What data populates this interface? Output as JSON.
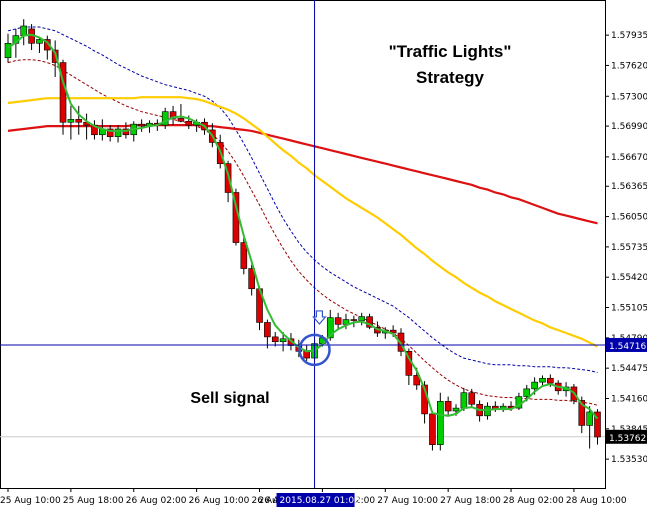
{
  "chart_data": {
    "type": "candlestick",
    "instrument": "GBPUSD",
    "annotations": {
      "title_line1": "\"Traffic Lights\"",
      "title_line2": "Strategy",
      "signal": "Sell signal"
    },
    "ylim": [
      1.5323,
      1.583
    ],
    "y_ticks": [
      "1.57935",
      "1.57620",
      "1.57300",
      "1.56990",
      "1.56670",
      "1.56365",
      "1.56050",
      "1.55735",
      "1.55420",
      "1.55105",
      "1.54790",
      "1.54475",
      "1.54160",
      "1.53845",
      "1.53530"
    ],
    "x_ticks": [
      "25 Aug 10:00",
      "25 Aug 18:00",
      "26 Aug 02:00",
      "26 Aug 10:00",
      "26 Aug 18:00",
      "27 Aug 02:00",
      "27 Aug 10:00",
      "27 Aug 18:00",
      "28 Aug 02:00",
      "28 Aug 10:00"
    ],
    "x_tick_bars": [
      0,
      8,
      16,
      24,
      32,
      40,
      48,
      56,
      64,
      72
    ],
    "x_partial_label": "26 A",
    "crosshair": {
      "time_label": "2015.08.27 01:00",
      "bar": 39,
      "price_label": "1.54716",
      "price": 1.54716
    },
    "last_price_label": "1.53762",
    "last_price": 1.53762,
    "signal_bar": 39,
    "arrow_bar": 40,
    "colors": {
      "bull": "#00cc00",
      "bear": "#dd0000",
      "ma_fast": "#33bb33",
      "ma_slow": "#ffcc00",
      "ma_long": "#dd1111",
      "env_upper": "#0000aa",
      "env_lower": "#990000",
      "crosshair": "#0000aa",
      "circle": "#3355cc",
      "arrow": "#3355cc",
      "price_box": "#0000aa",
      "last_box": "#000000"
    },
    "candles": [
      {
        "o": 1.577,
        "h": 1.5795,
        "l": 1.5765,
        "c": 1.5785
      },
      {
        "o": 1.5785,
        "h": 1.58,
        "l": 1.577,
        "c": 1.5793
      },
      {
        "o": 1.5793,
        "h": 1.581,
        "l": 1.5783,
        "c": 1.5803
      },
      {
        "o": 1.58,
        "h": 1.5805,
        "l": 1.5778,
        "c": 1.5785
      },
      {
        "o": 1.5785,
        "h": 1.5792,
        "l": 1.5775,
        "c": 1.5789
      },
      {
        "o": 1.5789,
        "h": 1.5793,
        "l": 1.5768,
        "c": 1.5778
      },
      {
        "o": 1.5778,
        "h": 1.5788,
        "l": 1.575,
        "c": 1.5765
      },
      {
        "o": 1.5765,
        "h": 1.5768,
        "l": 1.569,
        "c": 1.5703
      },
      {
        "o": 1.5703,
        "h": 1.572,
        "l": 1.5685,
        "c": 1.5706
      },
      {
        "o": 1.5706,
        "h": 1.572,
        "l": 1.569,
        "c": 1.5703
      },
      {
        "o": 1.5703,
        "h": 1.5712,
        "l": 1.5685,
        "c": 1.57
      },
      {
        "o": 1.57,
        "h": 1.5705,
        "l": 1.5685,
        "c": 1.569
      },
      {
        "o": 1.569,
        "h": 1.5706,
        "l": 1.5684,
        "c": 1.5696
      },
      {
        "o": 1.5696,
        "h": 1.57,
        "l": 1.5683,
        "c": 1.5688
      },
      {
        "o": 1.5688,
        "h": 1.57,
        "l": 1.5682,
        "c": 1.5696
      },
      {
        "o": 1.5696,
        "h": 1.5703,
        "l": 1.5686,
        "c": 1.569
      },
      {
        "o": 1.569,
        "h": 1.5704,
        "l": 1.5683,
        "c": 1.5701
      },
      {
        "o": 1.5701,
        "h": 1.5706,
        "l": 1.5693,
        "c": 1.5699
      },
      {
        "o": 1.5699,
        "h": 1.5705,
        "l": 1.5692,
        "c": 1.5702
      },
      {
        "o": 1.5702,
        "h": 1.5706,
        "l": 1.5694,
        "c": 1.57
      },
      {
        "o": 1.57,
        "h": 1.5718,
        "l": 1.5696,
        "c": 1.5714
      },
      {
        "o": 1.5714,
        "h": 1.572,
        "l": 1.57,
        "c": 1.5707
      },
      {
        "o": 1.5707,
        "h": 1.5722,
        "l": 1.5703,
        "c": 1.5704
      },
      {
        "o": 1.5704,
        "h": 1.571,
        "l": 1.5696,
        "c": 1.57
      },
      {
        "o": 1.57,
        "h": 1.5706,
        "l": 1.5693,
        "c": 1.5703
      },
      {
        "o": 1.5703,
        "h": 1.5707,
        "l": 1.569,
        "c": 1.5695
      },
      {
        "o": 1.5695,
        "h": 1.5702,
        "l": 1.5677,
        "c": 1.5682
      },
      {
        "o": 1.5682,
        "h": 1.569,
        "l": 1.5655,
        "c": 1.566
      },
      {
        "o": 1.566,
        "h": 1.5663,
        "l": 1.562,
        "c": 1.563
      },
      {
        "o": 1.563,
        "h": 1.5634,
        "l": 1.5575,
        "c": 1.5578
      },
      {
        "o": 1.5578,
        "h": 1.5583,
        "l": 1.5545,
        "c": 1.5551
      },
      {
        "o": 1.5551,
        "h": 1.5555,
        "l": 1.5523,
        "c": 1.553
      },
      {
        "o": 1.553,
        "h": 1.5533,
        "l": 1.5487,
        "c": 1.5495
      },
      {
        "o": 1.5495,
        "h": 1.5498,
        "l": 1.5468,
        "c": 1.548
      },
      {
        "o": 1.548,
        "h": 1.5485,
        "l": 1.547,
        "c": 1.5475
      },
      {
        "o": 1.5475,
        "h": 1.5485,
        "l": 1.5465,
        "c": 1.5478
      },
      {
        "o": 1.5478,
        "h": 1.5484,
        "l": 1.5466,
        "c": 1.5471
      },
      {
        "o": 1.5471,
        "h": 1.5477,
        "l": 1.5459,
        "c": 1.5465
      },
      {
        "o": 1.5465,
        "h": 1.5472,
        "l": 1.5455,
        "c": 1.5458
      },
      {
        "o": 1.5458,
        "h": 1.5477,
        "l": 1.5456,
        "c": 1.5473
      },
      {
        "o": 1.5473,
        "h": 1.5482,
        "l": 1.547,
        "c": 1.5479
      },
      {
        "o": 1.5479,
        "h": 1.5508,
        "l": 1.5476,
        "c": 1.55
      },
      {
        "o": 1.55,
        "h": 1.5505,
        "l": 1.5488,
        "c": 1.5493
      },
      {
        "o": 1.5493,
        "h": 1.5504,
        "l": 1.5488,
        "c": 1.5498
      },
      {
        "o": 1.5498,
        "h": 1.5502,
        "l": 1.549,
        "c": 1.5497
      },
      {
        "o": 1.5497,
        "h": 1.5505,
        "l": 1.5492,
        "c": 1.5501
      },
      {
        "o": 1.5501,
        "h": 1.5504,
        "l": 1.5488,
        "c": 1.549
      },
      {
        "o": 1.549,
        "h": 1.5496,
        "l": 1.548,
        "c": 1.5484
      },
      {
        "o": 1.5484,
        "h": 1.549,
        "l": 1.5478,
        "c": 1.5487
      },
      {
        "o": 1.5487,
        "h": 1.5492,
        "l": 1.548,
        "c": 1.5484
      },
      {
        "o": 1.5484,
        "h": 1.5489,
        "l": 1.546,
        "c": 1.5465
      },
      {
        "o": 1.5465,
        "h": 1.5468,
        "l": 1.543,
        "c": 1.544
      },
      {
        "o": 1.544,
        "h": 1.5448,
        "l": 1.5425,
        "c": 1.543
      },
      {
        "o": 1.543,
        "h": 1.5434,
        "l": 1.539,
        "c": 1.54
      },
      {
        "o": 1.54,
        "h": 1.5403,
        "l": 1.5362,
        "c": 1.5368
      },
      {
        "o": 1.5368,
        "h": 1.5422,
        "l": 1.5362,
        "c": 1.5413
      },
      {
        "o": 1.5413,
        "h": 1.5418,
        "l": 1.5398,
        "c": 1.5403
      },
      {
        "o": 1.5403,
        "h": 1.541,
        "l": 1.5398,
        "c": 1.5406
      },
      {
        "o": 1.5406,
        "h": 1.5427,
        "l": 1.5403,
        "c": 1.5422
      },
      {
        "o": 1.5422,
        "h": 1.5426,
        "l": 1.5406,
        "c": 1.541
      },
      {
        "o": 1.541,
        "h": 1.5414,
        "l": 1.5392,
        "c": 1.5398
      },
      {
        "o": 1.5398,
        "h": 1.5412,
        "l": 1.5394,
        "c": 1.5408
      },
      {
        "o": 1.5408,
        "h": 1.5413,
        "l": 1.5402,
        "c": 1.5405
      },
      {
        "o": 1.5405,
        "h": 1.5411,
        "l": 1.5402,
        "c": 1.5408
      },
      {
        "o": 1.5408,
        "h": 1.5413,
        "l": 1.5403,
        "c": 1.5406
      },
      {
        "o": 1.5406,
        "h": 1.5422,
        "l": 1.5404,
        "c": 1.5418
      },
      {
        "o": 1.5418,
        "h": 1.543,
        "l": 1.5413,
        "c": 1.5426
      },
      {
        "o": 1.5426,
        "h": 1.5438,
        "l": 1.542,
        "c": 1.5433
      },
      {
        "o": 1.5433,
        "h": 1.544,
        "l": 1.5428,
        "c": 1.5437
      },
      {
        "o": 1.5437,
        "h": 1.5441,
        "l": 1.5428,
        "c": 1.5432
      },
      {
        "o": 1.5432,
        "h": 1.5435,
        "l": 1.542,
        "c": 1.5424
      },
      {
        "o": 1.5424,
        "h": 1.5433,
        "l": 1.5418,
        "c": 1.5428
      },
      {
        "o": 1.5428,
        "h": 1.5431,
        "l": 1.541,
        "c": 1.5414
      },
      {
        "o": 1.5414,
        "h": 1.5418,
        "l": 1.538,
        "c": 1.5388
      },
      {
        "o": 1.5388,
        "h": 1.5408,
        "l": 1.5364,
        "c": 1.5402
      },
      {
        "o": 1.5402,
        "h": 1.5405,
        "l": 1.5368,
        "c": 1.5376
      }
    ],
    "ma_fast": [
      1.578,
      1.5786,
      1.5793,
      1.5794,
      1.5791,
      1.5786,
      1.5775,
      1.5745,
      1.5722,
      1.5711,
      1.5704,
      1.5699,
      1.5696,
      1.5694,
      1.5694,
      1.5694,
      1.5696,
      1.5697,
      1.5699,
      1.57,
      1.5704,
      1.5708,
      1.5709,
      1.5707,
      1.5703,
      1.5699,
      1.5689,
      1.5673,
      1.5649,
      1.5616,
      1.5585,
      1.5558,
      1.553,
      1.5508,
      1.5492,
      1.5483,
      1.5476,
      1.5469,
      1.5465,
      1.5466,
      1.5472,
      1.5482,
      1.5488,
      1.5492,
      1.5495,
      1.5496,
      1.5493,
      1.5488,
      1.5486,
      1.5483,
      1.5473,
      1.5458,
      1.5445,
      1.5426,
      1.5401,
      1.5399,
      1.5398,
      1.54,
      1.5406,
      1.5407,
      1.5404,
      1.5404,
      1.5405,
      1.5405,
      1.5405,
      1.5409,
      1.5415,
      1.5423,
      1.5429,
      1.5431,
      1.5428,
      1.5427,
      1.5422,
      1.541,
      1.5405,
      1.5395
    ],
    "ma_slow": [
      1.5723,
      1.5724,
      1.5725,
      1.5726,
      1.5727,
      1.5728,
      1.5728,
      1.5728,
      1.5728,
      1.5728,
      1.5728,
      1.5728,
      1.5728,
      1.5728,
      1.5728,
      1.5728,
      1.5728,
      1.5729,
      1.5729,
      1.5729,
      1.5729,
      1.5729,
      1.5729,
      1.5728,
      1.5727,
      1.5725,
      1.5722,
      1.5719,
      1.5716,
      1.5712,
      1.5707,
      1.5701,
      1.5695,
      1.5688,
      1.5681,
      1.5674,
      1.5668,
      1.5661,
      1.5655,
      1.5648,
      1.5642,
      1.5636,
      1.563,
      1.5624,
      1.5619,
      1.5614,
      1.5609,
      1.5604,
      1.5598,
      1.5592,
      1.5586,
      1.5579,
      1.5572,
      1.5566,
      1.5559,
      1.5553,
      1.5547,
      1.5542,
      1.5536,
      1.5531,
      1.5526,
      1.5522,
      1.5517,
      1.5513,
      1.5509,
      1.5505,
      1.5501,
      1.5497,
      1.5494,
      1.549,
      1.5487,
      1.5484,
      1.5481,
      1.5478,
      1.5474,
      1.547
    ],
    "ma_long": [
      1.5694,
      1.5695,
      1.5696,
      1.5697,
      1.5698,
      1.5699,
      1.5699,
      1.5699,
      1.5699,
      1.5699,
      1.5699,
      1.5699,
      1.5699,
      1.5699,
      1.5699,
      1.5699,
      1.57,
      1.57,
      1.57,
      1.57,
      1.57,
      1.57,
      1.57,
      1.57,
      1.57,
      1.5699,
      1.5699,
      1.5698,
      1.5697,
      1.5696,
      1.5695,
      1.5694,
      1.5692,
      1.569,
      1.5688,
      1.5686,
      1.5684,
      1.5682,
      1.568,
      1.5678,
      1.5676,
      1.5674,
      1.5672,
      1.567,
      1.5668,
      1.5666,
      1.5664,
      1.5662,
      1.566,
      1.5658,
      1.5656,
      1.5654,
      1.5652,
      1.565,
      1.5648,
      1.5646,
      1.5644,
      1.5642,
      1.564,
      1.5638,
      1.5635,
      1.5633,
      1.563,
      1.5628,
      1.5625,
      1.5623,
      1.562,
      1.5617,
      1.5614,
      1.5611,
      1.5608,
      1.5606,
      1.5604,
      1.5602,
      1.56,
      1.5598
    ],
    "env_upper": [
      1.5798,
      1.58,
      1.5802,
      1.5802,
      1.5802,
      1.58,
      1.5798,
      1.5794,
      1.579,
      1.5786,
      1.5782,
      1.5777,
      1.5773,
      1.5768,
      1.5763,
      1.5759,
      1.5755,
      1.5751,
      1.5748,
      1.5745,
      1.5742,
      1.574,
      1.5738,
      1.5736,
      1.5733,
      1.573,
      1.5725,
      1.5718,
      1.5708,
      1.5695,
      1.5681,
      1.5666,
      1.565,
      1.5634,
      1.5618,
      1.5603,
      1.559,
      1.5578,
      1.5568,
      1.556,
      1.5553,
      1.5547,
      1.5542,
      1.5537,
      1.5532,
      1.5528,
      1.5524,
      1.552,
      1.5516,
      1.5512,
      1.5506,
      1.55,
      1.5493,
      1.5486,
      1.5479,
      1.5473,
      1.5467,
      1.5462,
      1.5458,
      1.5456,
      1.5454,
      1.5452,
      1.5451,
      1.5451,
      1.5451,
      1.545,
      1.545,
      1.5449,
      1.5449,
      1.5449,
      1.5448,
      1.5448,
      1.5447,
      1.5446,
      1.5445,
      1.5443
    ],
    "env_lower": [
      1.5765,
      1.5767,
      1.5768,
      1.5768,
      1.5767,
      1.5765,
      1.5762,
      1.5757,
      1.5752,
      1.5747,
      1.5742,
      1.5737,
      1.5732,
      1.5728,
      1.5724,
      1.572,
      1.5717,
      1.5714,
      1.5712,
      1.571,
      1.5708,
      1.5706,
      1.5704,
      1.5702,
      1.5699,
      1.5695,
      1.569,
      1.5683,
      1.5673,
      1.5661,
      1.5647,
      1.5632,
      1.5617,
      1.5601,
      1.5586,
      1.5572,
      1.5559,
      1.5548,
      1.5539,
      1.5531,
      1.5524,
      1.5518,
      1.5513,
      1.5508,
      1.5504,
      1.55,
      1.5496,
      1.5492,
      1.5488,
      1.5484,
      1.5478,
      1.5471,
      1.5463,
      1.5455,
      1.5448,
      1.5441,
      1.5435,
      1.543,
      1.5426,
      1.5423,
      1.5421,
      1.5419,
      1.5418,
      1.5417,
      1.5417,
      1.5416,
      1.5416,
      1.5415,
      1.5415,
      1.5415,
      1.5414,
      1.5414,
      1.5413,
      1.5412,
      1.5411,
      1.5409
    ]
  }
}
